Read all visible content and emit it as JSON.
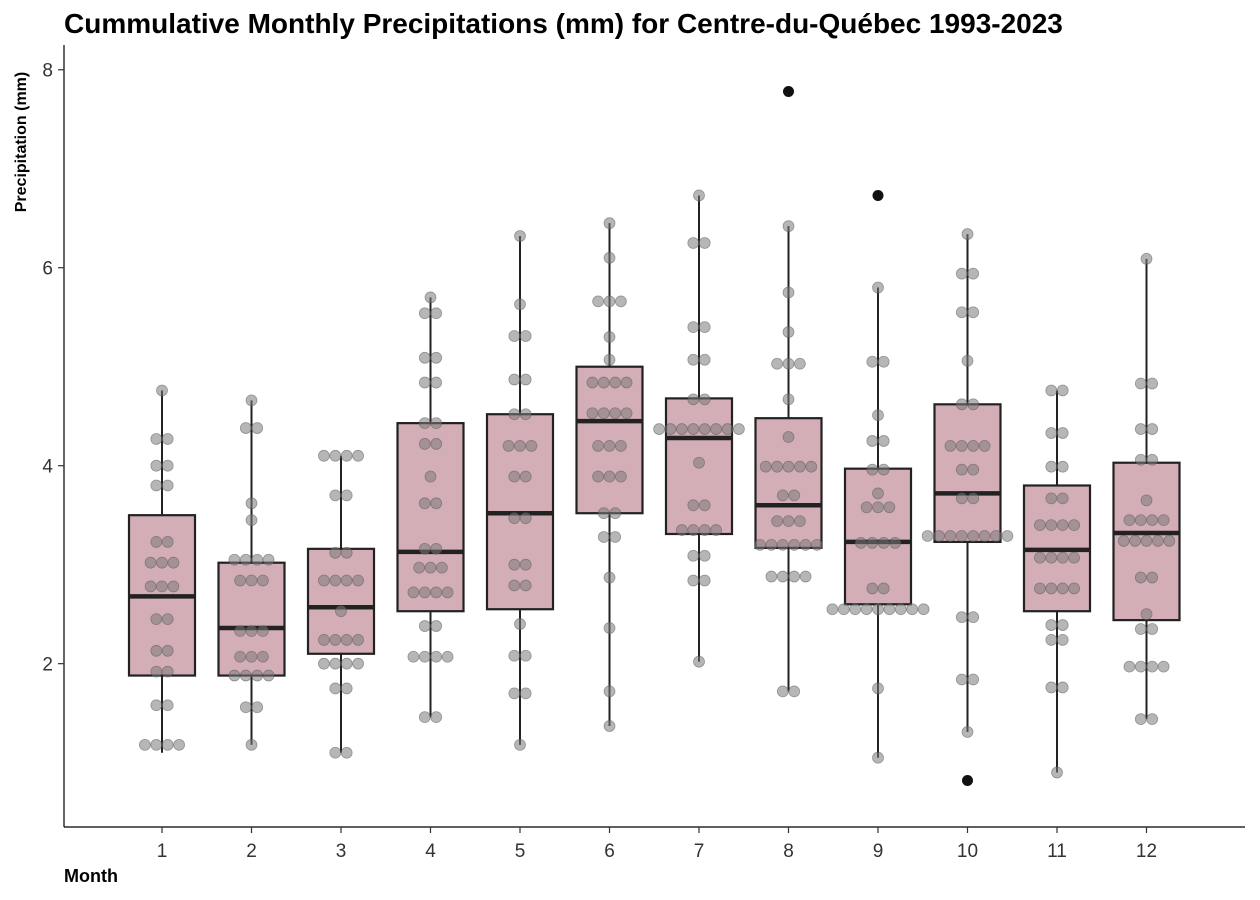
{
  "chart_data": {
    "type": "box",
    "title": "Cummulative Monthly Precipitations (mm) for Centre-du-Québec 1993-2023",
    "xlabel": "Month",
    "ylabel": "Precipitation (mm)",
    "ylim": [
      0.35,
      8.25
    ],
    "yticks": [
      2,
      4,
      6,
      8
    ],
    "grid": false,
    "legend": "none",
    "colors": {
      "box_fill": "#d4aeb6",
      "box_stroke": "#222222",
      "point": "#7a7a7a",
      "outlier": "#111111"
    },
    "categories": [
      "1",
      "2",
      "3",
      "4",
      "5",
      "6",
      "7",
      "8",
      "9",
      "10",
      "11",
      "12"
    ],
    "boxes": [
      {
        "month": "1",
        "whisker_low": 1.1,
        "q1": 1.88,
        "median": 2.68,
        "q3": 3.5,
        "whisker_high": 4.76,
        "outliers": []
      },
      {
        "month": "2",
        "whisker_low": 1.18,
        "q1": 1.88,
        "median": 2.36,
        "q3": 3.02,
        "whisker_high": 4.66,
        "outliers": []
      },
      {
        "month": "3",
        "whisker_low": 1.1,
        "q1": 2.1,
        "median": 2.57,
        "q3": 3.16,
        "whisker_high": 4.1,
        "outliers": []
      },
      {
        "month": "4",
        "whisker_low": 1.46,
        "q1": 2.53,
        "median": 3.13,
        "q3": 4.43,
        "whisker_high": 5.7,
        "outliers": []
      },
      {
        "month": "5",
        "whisker_low": 1.18,
        "q1": 2.55,
        "median": 3.52,
        "q3": 4.52,
        "whisker_high": 6.32,
        "outliers": []
      },
      {
        "month": "6",
        "whisker_low": 1.37,
        "q1": 3.52,
        "median": 4.45,
        "q3": 5.0,
        "whisker_high": 6.45,
        "outliers": []
      },
      {
        "month": "7",
        "whisker_low": 2.02,
        "q1": 3.31,
        "median": 4.28,
        "q3": 4.68,
        "whisker_high": 6.73,
        "outliers": []
      },
      {
        "month": "8",
        "whisker_low": 1.72,
        "q1": 3.17,
        "median": 3.6,
        "q3": 4.48,
        "whisker_high": 6.42,
        "outliers": [
          7.78
        ]
      },
      {
        "month": "9",
        "whisker_low": 1.05,
        "q1": 2.6,
        "median": 3.23,
        "q3": 3.97,
        "whisker_high": 5.8,
        "outliers": [
          6.73
        ]
      },
      {
        "month": "10",
        "whisker_low": 1.31,
        "q1": 3.23,
        "median": 3.72,
        "q3": 4.62,
        "whisker_high": 6.34,
        "outliers": [
          0.82
        ]
      },
      {
        "month": "11",
        "whisker_low": 0.9,
        "q1": 2.53,
        "median": 3.15,
        "q3": 3.8,
        "whisker_high": 4.76,
        "outliers": []
      },
      {
        "month": "12",
        "whisker_low": 1.44,
        "q1": 2.44,
        "median": 3.32,
        "q3": 4.03,
        "whisker_high": 6.09,
        "outliers": []
      }
    ],
    "points": [
      [
        1.18,
        1.18,
        1.18,
        1.18,
        1.58,
        1.58,
        1.92,
        1.92,
        2.13,
        2.13,
        2.45,
        2.45,
        2.78,
        2.78,
        2.78,
        3.02,
        3.02,
        3.02,
        3.23,
        3.23,
        3.8,
        3.8,
        4.0,
        4.0,
        4.27,
        4.27,
        4.76
      ],
      [
        1.18,
        1.56,
        1.56,
        1.88,
        1.88,
        1.88,
        1.88,
        2.07,
        2.07,
        2.07,
        2.33,
        2.33,
        2.33,
        2.84,
        2.84,
        2.84,
        3.05,
        3.05,
        3.05,
        3.05,
        3.45,
        3.62,
        4.38,
        4.38,
        4.66
      ],
      [
        1.1,
        1.1,
        1.75,
        1.75,
        2.0,
        2.0,
        2.0,
        2.0,
        2.24,
        2.24,
        2.24,
        2.24,
        2.53,
        2.84,
        2.84,
        2.84,
        2.84,
        3.12,
        3.12,
        3.7,
        3.7,
        4.1,
        4.1,
        4.1,
        4.1
      ],
      [
        1.46,
        1.46,
        2.07,
        2.07,
        2.07,
        2.07,
        2.38,
        2.38,
        2.72,
        2.72,
        2.72,
        2.72,
        2.97,
        2.97,
        2.97,
        3.16,
        3.16,
        3.62,
        3.62,
        3.89,
        4.22,
        4.22,
        4.43,
        4.43,
        4.84,
        4.84,
        5.09,
        5.09,
        5.54,
        5.54,
        5.7
      ],
      [
        1.18,
        1.7,
        1.7,
        2.08,
        2.08,
        2.4,
        2.79,
        2.79,
        3.0,
        3.0,
        3.47,
        3.47,
        3.89,
        3.89,
        4.2,
        4.2,
        4.2,
        4.52,
        4.52,
        4.87,
        4.87,
        5.31,
        5.31,
        5.63,
        6.32
      ],
      [
        1.37,
        1.72,
        2.36,
        2.87,
        3.28,
        3.28,
        3.52,
        3.52,
        3.89,
        3.89,
        3.89,
        4.2,
        4.2,
        4.2,
        4.53,
        4.53,
        4.53,
        4.53,
        4.84,
        4.84,
        4.84,
        4.84,
        5.07,
        5.3,
        5.66,
        5.66,
        5.66,
        6.1,
        6.45
      ],
      [
        2.02,
        2.84,
        2.84,
        3.09,
        3.09,
        3.35,
        3.35,
        3.35,
        3.35,
        3.6,
        3.6,
        4.03,
        4.37,
        4.37,
        4.37,
        4.37,
        4.37,
        4.37,
        4.37,
        4.37,
        4.67,
        4.67,
        5.07,
        5.07,
        5.4,
        5.4,
        6.25,
        6.25,
        6.73
      ],
      [
        1.72,
        1.72,
        2.88,
        2.88,
        2.88,
        2.88,
        3.2,
        3.2,
        3.2,
        3.2,
        3.2,
        3.2,
        3.44,
        3.44,
        3.44,
        3.7,
        3.7,
        3.99,
        3.99,
        3.99,
        3.99,
        3.99,
        4.29,
        4.67,
        5.03,
        5.03,
        5.03,
        5.35,
        5.75,
        6.42
      ],
      [
        1.05,
        1.75,
        2.55,
        2.55,
        2.55,
        2.55,
        2.55,
        2.55,
        2.55,
        2.55,
        2.55,
        2.76,
        2.76,
        3.22,
        3.22,
        3.22,
        3.22,
        3.58,
        3.58,
        3.58,
        3.72,
        3.96,
        3.96,
        4.25,
        4.25,
        4.51,
        5.05,
        5.05,
        5.8
      ],
      [
        1.31,
        1.84,
        1.84,
        2.47,
        2.47,
        3.29,
        3.29,
        3.29,
        3.29,
        3.29,
        3.29,
        3.29,
        3.29,
        3.67,
        3.67,
        3.96,
        3.96,
        4.2,
        4.2,
        4.2,
        4.2,
        4.62,
        4.62,
        5.06,
        5.55,
        5.55,
        5.94,
        5.94,
        6.34
      ],
      [
        0.9,
        1.76,
        1.76,
        2.24,
        2.24,
        2.39,
        2.39,
        2.76,
        2.76,
        2.76,
        2.76,
        3.07,
        3.07,
        3.07,
        3.07,
        3.4,
        3.4,
        3.4,
        3.4,
        3.67,
        3.67,
        3.99,
        3.99,
        4.33,
        4.33,
        4.76,
        4.76
      ],
      [
        1.44,
        1.44,
        1.97,
        1.97,
        1.97,
        1.97,
        2.35,
        2.35,
        2.5,
        2.87,
        2.87,
        3.24,
        3.24,
        3.24,
        3.24,
        3.24,
        3.45,
        3.45,
        3.45,
        3.45,
        3.65,
        4.06,
        4.06,
        4.37,
        4.37,
        4.83,
        4.83,
        6.09
      ]
    ]
  }
}
